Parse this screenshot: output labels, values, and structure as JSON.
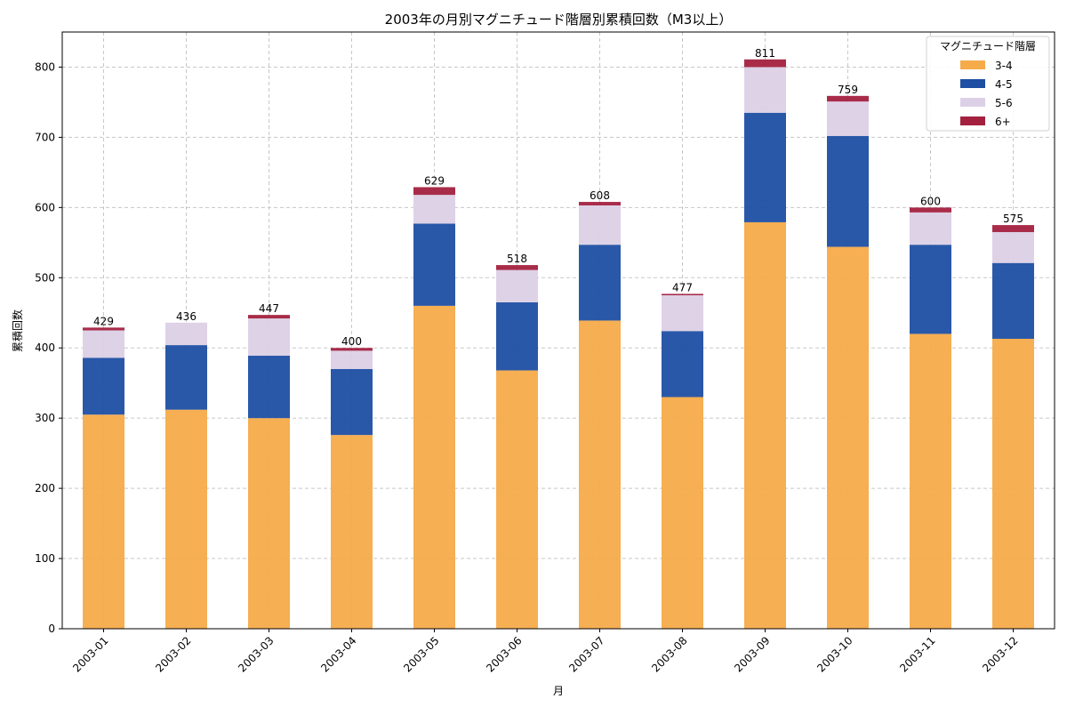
{
  "chart_data": {
    "type": "bar",
    "stacked": true,
    "title": "2003年の月別マグニチュード階層別累積回数（M3以上）",
    "xlabel": "月",
    "ylabel": "累積回数",
    "ylim": [
      0,
      850
    ],
    "yticks": [
      0,
      100,
      200,
      300,
      400,
      500,
      600,
      700,
      800
    ],
    "grid": true,
    "legend": {
      "title": "マグニチュード階層",
      "placement": "top-right"
    },
    "categories": [
      "2003-01",
      "2003-02",
      "2003-03",
      "2003-04",
      "2003-05",
      "2003-06",
      "2003-07",
      "2003-08",
      "2003-09",
      "2003-10",
      "2003-11",
      "2003-12"
    ],
    "series": [
      {
        "name": "3-4",
        "color": "#f5ab4a",
        "values": [
          305,
          312,
          300,
          276,
          460,
          368,
          439,
          330,
          579,
          544,
          420,
          413
        ]
      },
      {
        "name": "4-5",
        "color": "#1f4fa3",
        "values": [
          81,
          92,
          89,
          94,
          117,
          97,
          108,
          94,
          156,
          158,
          127,
          108
        ]
      },
      {
        "name": "5-6",
        "color": "#dcd0e6",
        "values": [
          39,
          32,
          53,
          26,
          41,
          46,
          56,
          51,
          65,
          49,
          46,
          44
        ]
      },
      {
        "name": "6+",
        "color": "#a3213f",
        "values": [
          4,
          0,
          5,
          4,
          11,
          7,
          5,
          2,
          11,
          8,
          7,
          10
        ]
      }
    ],
    "totals": [
      429,
      436,
      447,
      400,
      629,
      518,
      608,
      477,
      811,
      759,
      600,
      575
    ]
  }
}
